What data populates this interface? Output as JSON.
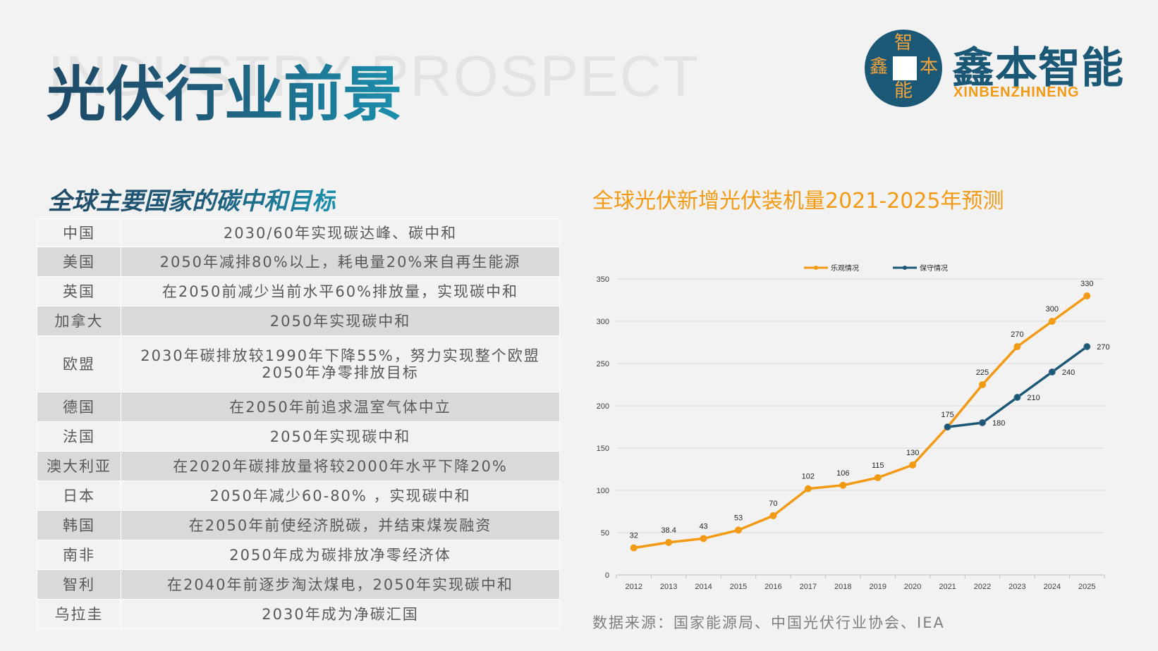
{
  "header": {
    "bg_text": "INDUSTRY PROSPECT",
    "title": "光伏行业前景"
  },
  "logo": {
    "char_top": "智",
    "char_left": "鑫",
    "char_right": "本",
    "char_bottom": "能",
    "name_cn": "鑫本智能",
    "name_en": "XINBENZHINENG"
  },
  "left_section": {
    "title": "全球主要国家的碳中和目标",
    "rows": [
      {
        "country": "中国",
        "target": "2030/60年实现碳达峰、碳中和"
      },
      {
        "country": "美国",
        "target": "2050年减排80%以上，耗电量20%来自再生能源"
      },
      {
        "country": "英国",
        "target": "在2050前减少当前水平60%排放量，实现碳中和"
      },
      {
        "country": "加拿大",
        "target": "2050年实现碳中和"
      },
      {
        "country": "欧盟",
        "target": "2030年碳排放较1990年下降55%，努力实现整个欧盟2050年净零排放目标"
      },
      {
        "country": "德国",
        "target": "在2050年前追求温室气体中立"
      },
      {
        "country": "法国",
        "target": "2050年实现碳中和"
      },
      {
        "country": "澳大利亚",
        "target": "在2020年碳排放量将较2000年水平下降20%"
      },
      {
        "country": "日本",
        "target": "2050年减少60-80% ，实现碳中和"
      },
      {
        "country": "韩国",
        "target": "在2050年前使经济脱碳，并结束煤炭融资"
      },
      {
        "country": "南非",
        "target": "2050年成为碳排放净零经济体"
      },
      {
        "country": "智利",
        "target": "在2040年前逐步淘汰煤电，2050年实现碳中和"
      },
      {
        "country": "乌拉圭",
        "target": "2030年成为净碳汇国"
      }
    ]
  },
  "right_section": {
    "title": "全球光伏新增光伏装机量2021-2025年预测",
    "source": "数据来源：国家能源局、中国光伏行业协会、IEA"
  },
  "chart_data": {
    "type": "line",
    "title": "全球光伏新增光伏装机量2021-2025年预测",
    "categories": [
      "2012",
      "2013",
      "2014",
      "2015",
      "2016",
      "2017",
      "2018",
      "2019",
      "2020",
      "2021",
      "2022",
      "2023",
      "2024",
      "2025"
    ],
    "ylim": [
      0,
      350
    ],
    "yticks": [
      0,
      50,
      100,
      150,
      200,
      250,
      300,
      350
    ],
    "grid": true,
    "legend_position": "top",
    "series": [
      {
        "name": "乐观情况",
        "color": "#f29a14",
        "values": [
          32,
          38.4,
          43,
          53,
          70,
          102,
          106,
          115,
          130,
          175,
          225,
          270,
          300,
          330
        ]
      },
      {
        "name": "保守情况",
        "color": "#1b5876",
        "values": [
          null,
          null,
          null,
          null,
          null,
          null,
          null,
          null,
          null,
          175,
          180,
          210,
          240,
          270
        ]
      }
    ]
  }
}
